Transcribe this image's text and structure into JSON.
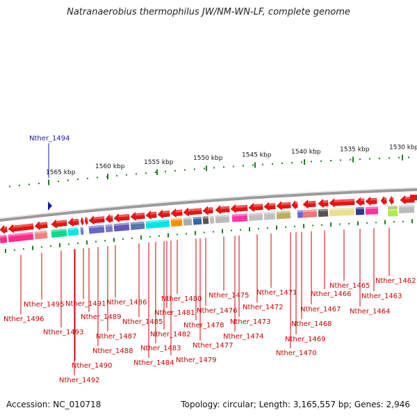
{
  "title": "Natranaerobius thermophilus JW/NM-WN-LF, complete genome",
  "focus_gene": "Nther_1494",
  "footer": {
    "accession": "Accession: NC_010718",
    "summary": "Topology: circular; Length: 3,165,557 bp; Genes: 2,946"
  },
  "colors": {
    "backbone": "#9a9a9a",
    "tick": "#1f7a1f",
    "label": "#cc0000",
    "focus": "#1a1aa8",
    "arrow": "#ee1111"
  },
  "scale_labels": [
    "1565 kbp",
    "1560 kbp",
    "1555 kbp",
    "1550 kbp",
    "1545 kbp",
    "1540 kbp",
    "1535 kbp",
    "1530 kbp"
  ],
  "gene_labels": [
    "Nther_1496",
    "Nther_1495",
    "Nther_1493",
    "Nther_1492",
    "Nther_1491",
    "Nther_1490",
    "Nther_1489",
    "Nther_1488",
    "Nther_1487",
    "Nther_1486",
    "Nther_1485",
    "Nther_1484",
    "Nther_1483",
    "Nther_1482",
    "Nther_1481",
    "Nther_1480",
    "Nther_1479",
    "Nther_1478",
    "Nther_1477",
    "Nther_1476",
    "Nther_1475",
    "Nther_1474",
    "Nther_1473",
    "Nther_1472",
    "Nther_1471",
    "Nther_1470",
    "Nther_1469",
    "Nther_1468",
    "Nther_1467",
    "Nther_1466",
    "Nther_1465",
    "Nther_1464",
    "Nther_1463",
    "Nther_1462"
  ]
}
